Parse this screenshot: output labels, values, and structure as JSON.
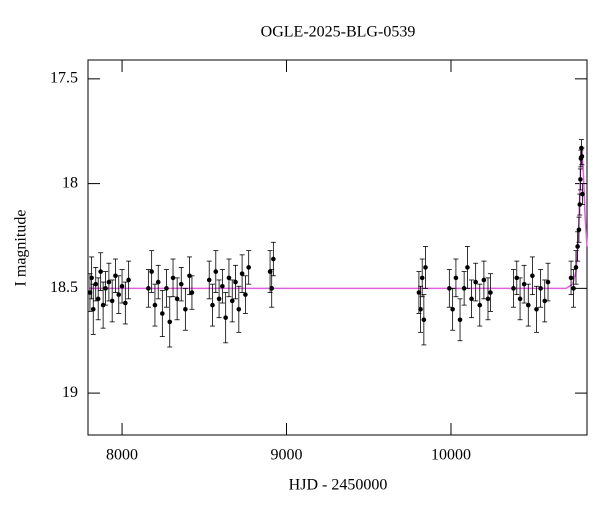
{
  "chart_data": {
    "type": "scatter",
    "title": "OGLE-2025-BLG-0539",
    "x_label": "HJD - 2450000",
    "y_label": "I magnitude",
    "xlim": [
      7793,
      10827
    ],
    "ylim": [
      19.2,
      17.41
    ],
    "xticks": [
      8000,
      9000,
      10000
    ],
    "yticks": [
      17.5,
      18,
      18.5,
      19
    ],
    "points": {
      "color": "#000000",
      "x": [
        7805,
        7815,
        7825,
        7840,
        7855,
        7870,
        7885,
        7900,
        7920,
        7940,
        7960,
        7980,
        8000,
        8020,
        8040,
        8160,
        8180,
        8200,
        8220,
        8245,
        8270,
        8290,
        8310,
        8335,
        8360,
        8385,
        8410,
        8425,
        8530,
        8550,
        8570,
        8590,
        8610,
        8630,
        8650,
        8670,
        8690,
        8710,
        8730,
        8750,
        8770,
        8900,
        8910,
        8920,
        9805,
        9815,
        9825,
        9835,
        9845,
        9990,
        10010,
        10030,
        10055,
        10080,
        10100,
        10125,
        10150,
        10175,
        10200,
        10225,
        10240,
        10380,
        10400,
        10420,
        10445,
        10470,
        10495,
        10520,
        10545,
        10570,
        10590,
        10730,
        10745,
        10760,
        10770,
        10778,
        10783,
        10787,
        10790,
        10793,
        10796,
        10799
      ],
      "y": [
        18.52,
        18.45,
        18.6,
        18.48,
        18.55,
        18.42,
        18.58,
        18.5,
        18.47,
        18.56,
        18.44,
        18.53,
        18.49,
        18.57,
        18.46,
        18.5,
        18.42,
        18.58,
        18.47,
        18.62,
        18.5,
        18.66,
        18.45,
        18.55,
        18.48,
        18.6,
        18.44,
        18.52,
        18.46,
        18.58,
        18.42,
        18.55,
        18.49,
        18.64,
        18.45,
        18.56,
        18.47,
        18.6,
        18.43,
        18.53,
        18.4,
        18.42,
        18.5,
        18.36,
        18.52,
        18.6,
        18.45,
        18.65,
        18.4,
        18.5,
        18.6,
        18.45,
        18.65,
        18.5,
        18.4,
        18.55,
        18.47,
        18.58,
        18.46,
        18.55,
        18.52,
        18.5,
        18.45,
        18.55,
        18.48,
        18.58,
        18.44,
        18.6,
        18.5,
        18.56,
        18.47,
        18.45,
        18.5,
        18.4,
        18.3,
        18.22,
        18.1,
        17.98,
        17.88,
        17.83,
        17.87,
        18.05
      ],
      "err": [
        0.09,
        0.1,
        0.12,
        0.08,
        0.1,
        0.09,
        0.11,
        0.08,
        0.09,
        0.1,
        0.08,
        0.09,
        0.08,
        0.1,
        0.09,
        0.09,
        0.1,
        0.1,
        0.08,
        0.11,
        0.09,
        0.12,
        0.09,
        0.1,
        0.08,
        0.1,
        0.09,
        0.08,
        0.09,
        0.1,
        0.1,
        0.09,
        0.08,
        0.12,
        0.09,
        0.1,
        0.08,
        0.11,
        0.09,
        0.09,
        0.08,
        0.1,
        0.09,
        0.08,
        0.1,
        0.11,
        0.09,
        0.12,
        0.1,
        0.09,
        0.1,
        0.09,
        0.1,
        0.08,
        0.1,
        0.09,
        0.09,
        0.1,
        0.09,
        0.1,
        0.09,
        0.09,
        0.08,
        0.1,
        0.09,
        0.1,
        0.09,
        0.11,
        0.09,
        0.1,
        0.09,
        0.08,
        0.09,
        0.08,
        0.07,
        0.06,
        0.05,
        0.05,
        0.04,
        0.04,
        0.04,
        0.05
      ]
    },
    "model": {
      "color": "#e060e0",
      "x": [
        7793,
        10700,
        10740,
        10760,
        10775,
        10785,
        10790,
        10795,
        10805,
        10815,
        10827
      ],
      "y": [
        18.5,
        18.5,
        18.48,
        18.42,
        18.25,
        18.0,
        17.85,
        17.83,
        17.95,
        18.15,
        18.3
      ]
    }
  }
}
